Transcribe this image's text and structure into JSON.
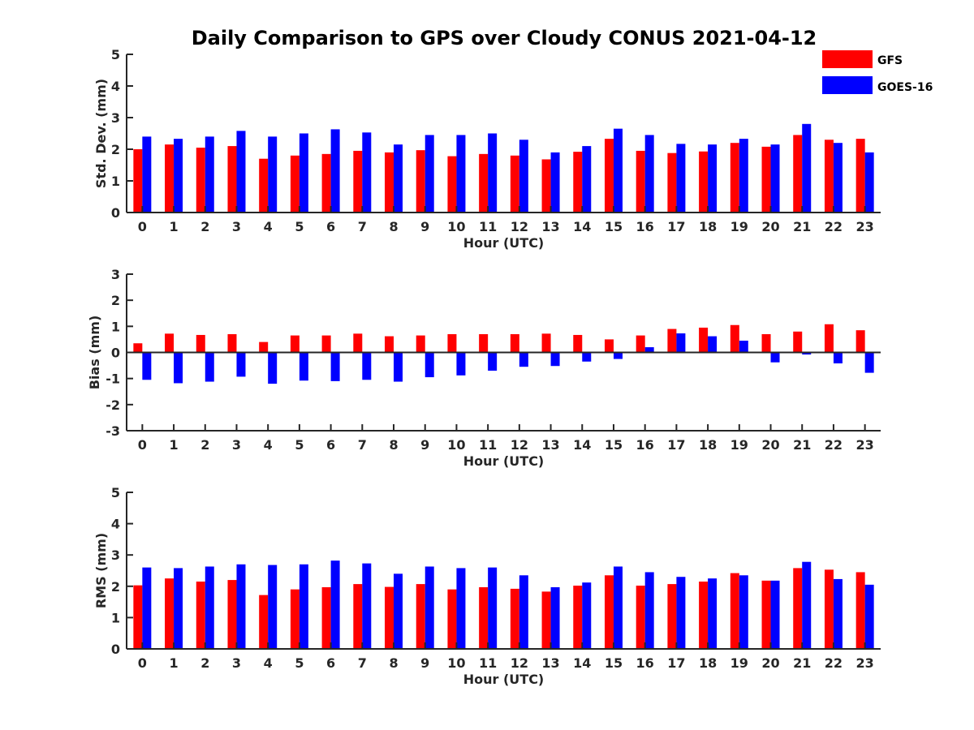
{
  "title": "Daily Comparison to GPS over Cloudy CONUS 2021-04-12",
  "legend": [
    {
      "name": "GFS",
      "color": "#ff0000"
    },
    {
      "name": "GOES-16",
      "color": "#0000ff"
    }
  ],
  "chart_data": [
    {
      "type": "bar",
      "xlabel": "Hour (UTC)",
      "ylabel": "Std. Dev. (mm)",
      "ylim": [
        0,
        5
      ],
      "yticks": [
        0,
        1,
        2,
        3,
        4,
        5
      ],
      "categories": [
        "0",
        "1",
        "2",
        "3",
        "4",
        "5",
        "6",
        "7",
        "8",
        "9",
        "10",
        "11",
        "12",
        "13",
        "14",
        "15",
        "16",
        "17",
        "18",
        "19",
        "20",
        "21",
        "22",
        "23"
      ],
      "series": [
        {
          "name": "GFS",
          "color": "#ff0000",
          "values": [
            2.0,
            2.15,
            2.05,
            2.1,
            1.7,
            1.8,
            1.85,
            1.95,
            1.9,
            1.97,
            1.78,
            1.85,
            1.8,
            1.68,
            1.92,
            2.33,
            1.95,
            1.88,
            1.93,
            2.2,
            2.08,
            2.45,
            2.3,
            2.33
          ]
        },
        {
          "name": "GOES-16",
          "color": "#0000ff",
          "values": [
            2.4,
            2.33,
            2.4,
            2.58,
            2.4,
            2.5,
            2.63,
            2.53,
            2.15,
            2.45,
            2.45,
            2.5,
            2.3,
            1.9,
            2.1,
            2.65,
            2.45,
            2.17,
            2.15,
            2.33,
            2.15,
            2.8,
            2.2,
            1.9
          ]
        }
      ]
    },
    {
      "type": "bar",
      "xlabel": "Hour (UTC)",
      "ylabel": "Bias (mm)",
      "ylim": [
        -3,
        3
      ],
      "yticks": [
        -3,
        -2,
        -1,
        0,
        1,
        2,
        3
      ],
      "categories": [
        "0",
        "1",
        "2",
        "3",
        "4",
        "5",
        "6",
        "7",
        "8",
        "9",
        "10",
        "11",
        "12",
        "13",
        "14",
        "15",
        "16",
        "17",
        "18",
        "19",
        "20",
        "21",
        "22",
        "23"
      ],
      "series": [
        {
          "name": "GFS",
          "color": "#ff0000",
          "values": [
            0.35,
            0.72,
            0.67,
            0.7,
            0.4,
            0.65,
            0.65,
            0.72,
            0.62,
            0.65,
            0.7,
            0.7,
            0.7,
            0.72,
            0.67,
            0.5,
            0.65,
            0.9,
            0.95,
            1.05,
            0.7,
            0.8,
            1.08,
            0.85
          ]
        },
        {
          "name": "GOES-16",
          "color": "#0000ff",
          "values": [
            -1.05,
            -1.18,
            -1.12,
            -0.93,
            -1.2,
            -1.08,
            -1.1,
            -1.05,
            -1.12,
            -0.95,
            -0.88,
            -0.7,
            -0.55,
            -0.52,
            -0.35,
            -0.25,
            0.2,
            0.73,
            0.62,
            0.45,
            -0.38,
            -0.08,
            -0.42,
            -0.78
          ]
        }
      ]
    },
    {
      "type": "bar",
      "xlabel": "Hour (UTC)",
      "ylabel": "RMS (mm)",
      "ylim": [
        0,
        5
      ],
      "yticks": [
        0,
        1,
        2,
        3,
        4,
        5
      ],
      "categories": [
        "0",
        "1",
        "2",
        "3",
        "4",
        "5",
        "6",
        "7",
        "8",
        "9",
        "10",
        "11",
        "12",
        "13",
        "14",
        "15",
        "16",
        "17",
        "18",
        "19",
        "20",
        "21",
        "22",
        "23"
      ],
      "series": [
        {
          "name": "GFS",
          "color": "#ff0000",
          "values": [
            2.03,
            2.25,
            2.15,
            2.2,
            1.72,
            1.9,
            1.97,
            2.07,
            1.98,
            2.07,
            1.9,
            1.97,
            1.92,
            1.83,
            2.02,
            2.35,
            2.02,
            2.07,
            2.15,
            2.42,
            2.18,
            2.58,
            2.53,
            2.45
          ]
        },
        {
          "name": "GOES-16",
          "color": "#0000ff",
          "values": [
            2.6,
            2.58,
            2.63,
            2.7,
            2.68,
            2.7,
            2.82,
            2.73,
            2.4,
            2.63,
            2.58,
            2.6,
            2.35,
            1.97,
            2.12,
            2.63,
            2.45,
            2.3,
            2.25,
            2.35,
            2.18,
            2.78,
            2.23,
            2.05
          ]
        }
      ]
    }
  ]
}
